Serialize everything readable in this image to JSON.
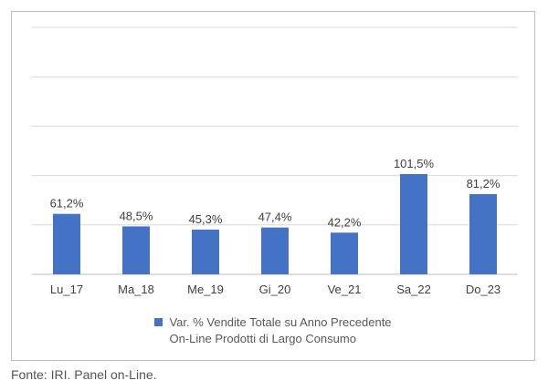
{
  "chart_data": {
    "type": "bar",
    "categories": [
      "Lu_17",
      "Ma_18",
      "Me_19",
      "Gi_20",
      "Ve_21",
      "Sa_22",
      "Do_23"
    ],
    "series": [
      {
        "name": "Var. % Vendite Totale su Anno Precedente On-Line Prodotti di Largo Consumo",
        "values": [
          61.2,
          48.5,
          45.3,
          47.4,
          42.2,
          101.5,
          81.2
        ],
        "labels": [
          "61,2%",
          "48,5%",
          "45,3%",
          "47,4%",
          "42,2%",
          "101,5%",
          "81,2%"
        ]
      }
    ],
    "ylim": [
      0,
      250
    ],
    "grid": true,
    "y_tick_labels_shown": false,
    "legend_position": "bottom",
    "bar_color": "#4472c4"
  },
  "legend": {
    "line1": "Var. % Vendite Totale su Anno Precedente",
    "line2": "On-Line Prodotti di Largo Consumo"
  },
  "caption": "Fonte: IRI. Panel on-Line."
}
